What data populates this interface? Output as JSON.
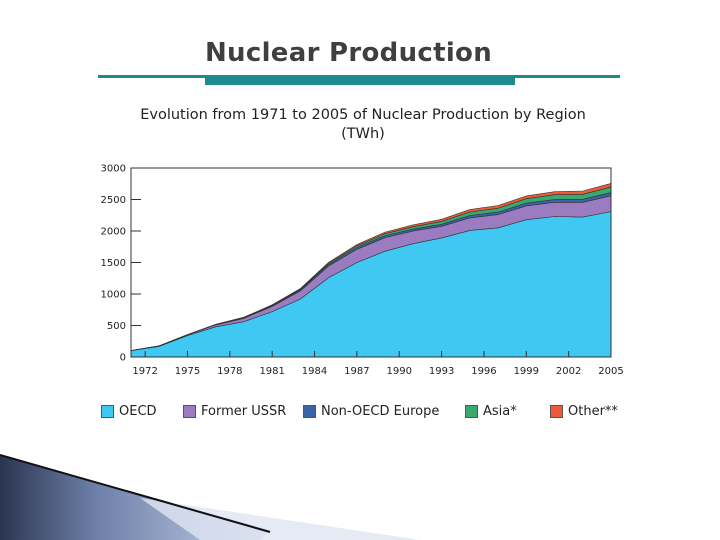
{
  "slide": {
    "title": "Nuclear Production"
  },
  "colors": {
    "accent": "#1e8a8e",
    "oecd": "#3ec8f2",
    "ussr": "#9b7cc0",
    "non_oecd_europe": "#3a64a8",
    "asia": "#3aa870",
    "other": "#ee5a38"
  },
  "chart_data": {
    "type": "area",
    "stacked": true,
    "title": "Evolution from 1971 to 2005 of Nuclear Production by Region",
    "subtitle": "(TWh)",
    "xlabel": "",
    "ylabel": "",
    "xlim": [
      1971,
      2005
    ],
    "ylim": [
      0,
      3000
    ],
    "x_ticks": [
      1972,
      1975,
      1978,
      1981,
      1984,
      1987,
      1990,
      1993,
      1996,
      1999,
      2002,
      2005
    ],
    "y_ticks": [
      0,
      500,
      1000,
      1500,
      2000,
      2500,
      3000
    ],
    "grid": false,
    "legend_position": "bottom",
    "x": [
      1971,
      1973,
      1975,
      1977,
      1979,
      1981,
      1983,
      1985,
      1987,
      1989,
      1991,
      1993,
      1995,
      1997,
      1999,
      2001,
      2003,
      2005
    ],
    "series": [
      {
        "name": "OECD",
        "values": [
          100,
          170,
          340,
          480,
          560,
          720,
          920,
          1260,
          1500,
          1680,
          1800,
          1890,
          2010,
          2050,
          2180,
          2230,
          2220,
          2310
        ]
      },
      {
        "name": "Former USSR",
        "values": [
          2,
          5,
          12,
          30,
          55,
          85,
          130,
          185,
          210,
          215,
          200,
          185,
          200,
          210,
          220,
          225,
          235,
          250
        ]
      },
      {
        "name": "Non-OECD Europe",
        "values": [
          0,
          1,
          2,
          4,
          8,
          10,
          16,
          24,
          30,
          32,
          30,
          32,
          36,
          40,
          42,
          45,
          48,
          50
        ]
      },
      {
        "name": "Asia*",
        "values": [
          0,
          1,
          2,
          3,
          5,
          8,
          12,
          18,
          25,
          30,
          38,
          45,
          55,
          62,
          70,
          76,
          80,
          90
        ]
      },
      {
        "name": "Other**",
        "values": [
          0,
          0,
          1,
          2,
          4,
          6,
          10,
          14,
          20,
          25,
          30,
          33,
          38,
          42,
          45,
          48,
          52,
          55
        ]
      }
    ]
  }
}
